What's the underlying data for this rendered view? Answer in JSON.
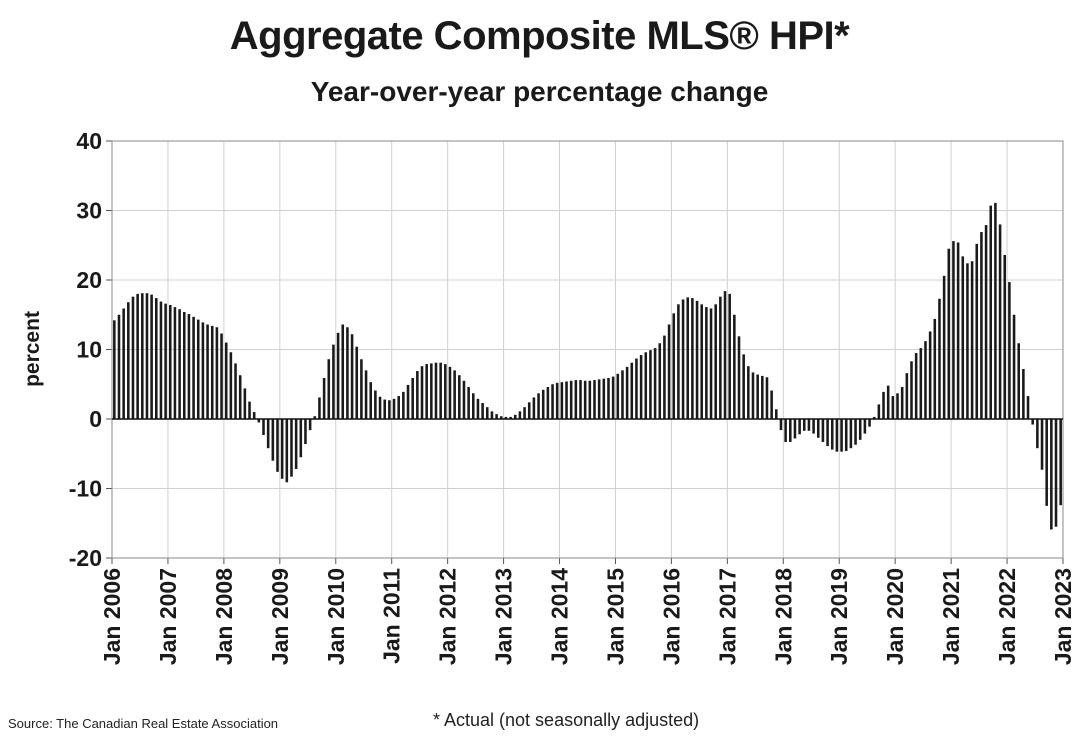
{
  "chart_data": {
    "type": "bar",
    "title": "Aggregate Composite MLS® HPI*",
    "subtitle": "Year-over-year percentage change",
    "xlabel": "",
    "ylabel": "percent",
    "ylim": [
      -20,
      40
    ],
    "yticks": [
      40,
      30,
      20,
      10,
      0,
      -10,
      -20
    ],
    "grid": true,
    "start": "Jan 2006",
    "frequency": "monthly",
    "xtick_labels": [
      "Jan 2006",
      "Jan 2007",
      "Jan 2008",
      "Jan 2009",
      "Jan 2010",
      "Jan 2011",
      "Jan 2012",
      "Jan 2013",
      "Jan 2014",
      "Jan 2015",
      "Jan 2016",
      "Jan 2017",
      "Jan 2018",
      "Jan 2019",
      "Jan 2020",
      "Jan 2021",
      "Jan 2022",
      "Jan 2023"
    ],
    "series": [
      {
        "name": "Aggregate Composite MLS® HPI y/y % change",
        "color": "#1a1a1a",
        "values": [
          14.2,
          15.0,
          15.9,
          16.8,
          17.6,
          18.0,
          18.1,
          18.1,
          17.9,
          17.4,
          16.9,
          16.6,
          16.4,
          16.1,
          15.8,
          15.4,
          15.1,
          14.7,
          14.3,
          13.9,
          13.6,
          13.4,
          13.2,
          12.3,
          11.0,
          9.6,
          8.0,
          6.3,
          4.4,
          2.5,
          1.0,
          -0.5,
          -2.3,
          -4.2,
          -6.0,
          -7.6,
          -8.6,
          -9.1,
          -8.3,
          -7.2,
          -5.5,
          -3.6,
          -1.6,
          0.4,
          3.1,
          5.9,
          8.6,
          10.7,
          12.4,
          13.6,
          13.2,
          12.2,
          10.4,
          8.6,
          7.0,
          5.3,
          4.1,
          3.2,
          2.8,
          2.7,
          2.9,
          3.3,
          3.9,
          4.9,
          5.9,
          6.9,
          7.6,
          7.9,
          8.0,
          8.1,
          8.1,
          7.9,
          7.5,
          7.0,
          6.3,
          5.5,
          4.6,
          3.7,
          2.9,
          2.3,
          1.7,
          1.1,
          0.7,
          0.4,
          0.3,
          0.3,
          0.6,
          1.1,
          1.7,
          2.4,
          3.1,
          3.7,
          4.2,
          4.6,
          5.0,
          5.2,
          5.3,
          5.4,
          5.5,
          5.6,
          5.6,
          5.5,
          5.5,
          5.6,
          5.7,
          5.8,
          5.9,
          6.1,
          6.5,
          7.0,
          7.5,
          8.1,
          8.7,
          9.2,
          9.6,
          9.9,
          10.2,
          10.9,
          12.0,
          13.6,
          15.2,
          16.5,
          17.2,
          17.5,
          17.4,
          17.0,
          16.5,
          16.1,
          15.9,
          16.5,
          17.6,
          18.4,
          18.0,
          15.0,
          11.9,
          9.3,
          7.6,
          6.7,
          6.4,
          6.2,
          6.0,
          4.1,
          1.4,
          -1.6,
          -3.3,
          -3.3,
          -2.8,
          -2.2,
          -1.7,
          -1.7,
          -2.1,
          -2.7,
          -3.3,
          -3.9,
          -4.4,
          -4.7,
          -4.7,
          -4.6,
          -4.2,
          -3.7,
          -3.0,
          -2.1,
          -1.1,
          0.3,
          2.1,
          3.9,
          4.8,
          3.3,
          3.7,
          4.6,
          6.6,
          8.3,
          9.5,
          10.2,
          11.2,
          12.6,
          14.4,
          17.3,
          20.6,
          24.5,
          25.6,
          25.4,
          23.4,
          22.4,
          22.7,
          25.2,
          26.9,
          27.9,
          30.7,
          31.1,
          28.0,
          23.6,
          19.7,
          15.0,
          10.9,
          7.2,
          3.3,
          -0.8,
          -4.2,
          -7.3,
          -12.5,
          -15.9,
          -15.5,
          -12.4
        ]
      }
    ]
  },
  "footer": {
    "source": "Source: The Canadian Real Estate Association",
    "footnote": "* Actual (not seasonally adjusted)"
  }
}
